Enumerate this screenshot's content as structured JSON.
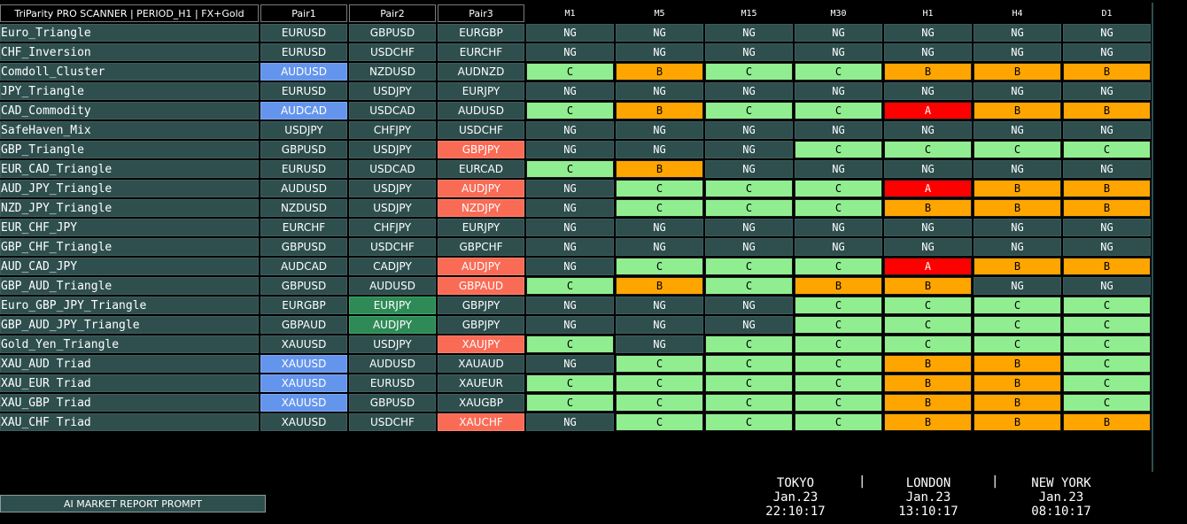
{
  "header": {
    "title": "TriParity PRO SCANNER | PERIOD_H1 | FX+Gold",
    "pair_headers": [
      "Pair1",
      "Pair2",
      "Pair3"
    ],
    "timeframes": [
      "M1",
      "M5",
      "M15",
      "M30",
      "H1",
      "H4",
      "D1"
    ]
  },
  "colors": {
    "NG": "#2f4f4f",
    "C": "#90ee90",
    "B": "#ffa500",
    "A": "#ff0000",
    "pair_blue": "#6495ed",
    "pair_red": "#fa6b55",
    "pair_green": "#2e8b57"
  },
  "rows": [
    {
      "name": "Euro_Triangle",
      "pairs": [
        [
          "EURUSD",
          ""
        ],
        [
          "GBPUSD",
          ""
        ],
        [
          "EURGBP",
          ""
        ]
      ],
      "signals": [
        "NG",
        "NG",
        "NG",
        "NG",
        "NG",
        "NG",
        "NG"
      ]
    },
    {
      "name": "CHF_Inversion",
      "pairs": [
        [
          "EURUSD",
          ""
        ],
        [
          "USDCHF",
          ""
        ],
        [
          "EURCHF",
          ""
        ]
      ],
      "signals": [
        "NG",
        "NG",
        "NG",
        "NG",
        "NG",
        "NG",
        "NG"
      ]
    },
    {
      "name": "Comdoll_Cluster",
      "pairs": [
        [
          "AUDUSD",
          "blue"
        ],
        [
          "NZDUSD",
          ""
        ],
        [
          "AUDNZD",
          ""
        ]
      ],
      "signals": [
        "C",
        "B",
        "C",
        "C",
        "B",
        "B",
        "B"
      ]
    },
    {
      "name": "JPY_Triangle",
      "pairs": [
        [
          "EURUSD",
          ""
        ],
        [
          "USDJPY",
          ""
        ],
        [
          "EURJPY",
          ""
        ]
      ],
      "signals": [
        "NG",
        "NG",
        "NG",
        "NG",
        "NG",
        "NG",
        "NG"
      ]
    },
    {
      "name": "CAD_Commodity",
      "pairs": [
        [
          "AUDCAD",
          "blue"
        ],
        [
          "USDCAD",
          ""
        ],
        [
          "AUDUSD",
          ""
        ]
      ],
      "signals": [
        "C",
        "B",
        "C",
        "C",
        "A",
        "B",
        "B"
      ]
    },
    {
      "name": "SafeHaven_Mix",
      "pairs": [
        [
          "USDJPY",
          ""
        ],
        [
          "CHFJPY",
          ""
        ],
        [
          "USDCHF",
          ""
        ]
      ],
      "signals": [
        "NG",
        "NG",
        "NG",
        "NG",
        "NG",
        "NG",
        "NG"
      ]
    },
    {
      "name": "GBP_Triangle",
      "pairs": [
        [
          "GBPUSD",
          ""
        ],
        [
          "USDJPY",
          ""
        ],
        [
          "GBPJPY",
          "red"
        ]
      ],
      "signals": [
        "NG",
        "NG",
        "NG",
        "C",
        "C",
        "C",
        "C"
      ]
    },
    {
      "name": "EUR_CAD_Triangle",
      "pairs": [
        [
          "EURUSD",
          ""
        ],
        [
          "USDCAD",
          ""
        ],
        [
          "EURCAD",
          ""
        ]
      ],
      "signals": [
        "C",
        "B",
        "NG",
        "NG",
        "NG",
        "NG",
        "NG"
      ]
    },
    {
      "name": "AUD_JPY_Triangle",
      "pairs": [
        [
          "AUDUSD",
          ""
        ],
        [
          "USDJPY",
          ""
        ],
        [
          "AUDJPY",
          "red"
        ]
      ],
      "signals": [
        "NG",
        "C",
        "C",
        "C",
        "A",
        "B",
        "B"
      ]
    },
    {
      "name": "NZD_JPY_Triangle",
      "pairs": [
        [
          "NZDUSD",
          ""
        ],
        [
          "USDJPY",
          ""
        ],
        [
          "NZDJPY",
          "red"
        ]
      ],
      "signals": [
        "NG",
        "C",
        "C",
        "C",
        "B",
        "B",
        "B"
      ]
    },
    {
      "name": "EUR_CHF_JPY",
      "pairs": [
        [
          "EURCHF",
          ""
        ],
        [
          "CHFJPY",
          ""
        ],
        [
          "EURJPY",
          ""
        ]
      ],
      "signals": [
        "NG",
        "NG",
        "NG",
        "NG",
        "NG",
        "NG",
        "NG"
      ]
    },
    {
      "name": "GBP_CHF_Triangle",
      "pairs": [
        [
          "GBPUSD",
          ""
        ],
        [
          "USDCHF",
          ""
        ],
        [
          "GBPCHF",
          ""
        ]
      ],
      "signals": [
        "NG",
        "NG",
        "NG",
        "NG",
        "NG",
        "NG",
        "NG"
      ]
    },
    {
      "name": "AUD_CAD_JPY",
      "pairs": [
        [
          "AUDCAD",
          ""
        ],
        [
          "CADJPY",
          ""
        ],
        [
          "AUDJPY",
          "red"
        ]
      ],
      "signals": [
        "NG",
        "C",
        "C",
        "C",
        "A",
        "B",
        "B"
      ]
    },
    {
      "name": "GBP_AUD_Triangle",
      "pairs": [
        [
          "GBPUSD",
          ""
        ],
        [
          "AUDUSD",
          ""
        ],
        [
          "GBPAUD",
          "red"
        ]
      ],
      "signals": [
        "C",
        "B",
        "C",
        "B",
        "B",
        "NG",
        "NG"
      ]
    },
    {
      "name": "Euro_GBP_JPY_Triangle",
      "pairs": [
        [
          "EURGBP",
          ""
        ],
        [
          "EURJPY",
          "green"
        ],
        [
          "GBPJPY",
          ""
        ]
      ],
      "signals": [
        "NG",
        "NG",
        "NG",
        "C",
        "C",
        "C",
        "C"
      ]
    },
    {
      "name": "GBP_AUD_JPY_Triangle",
      "pairs": [
        [
          "GBPAUD",
          ""
        ],
        [
          "AUDJPY",
          "green"
        ],
        [
          "GBPJPY",
          ""
        ]
      ],
      "signals": [
        "NG",
        "NG",
        "NG",
        "C",
        "C",
        "C",
        "C"
      ]
    },
    {
      "name": "Gold_Yen_Triangle",
      "pairs": [
        [
          "XAUUSD",
          ""
        ],
        [
          "USDJPY",
          ""
        ],
        [
          "XAUJPY",
          "red"
        ]
      ],
      "signals": [
        "C",
        "NG",
        "C",
        "C",
        "C",
        "C",
        "C"
      ]
    },
    {
      "name": "XAU_AUD Triad",
      "pairs": [
        [
          "XAUUSD",
          "blue"
        ],
        [
          "AUDUSD",
          ""
        ],
        [
          "XAUAUD",
          ""
        ]
      ],
      "signals": [
        "NG",
        "C",
        "C",
        "C",
        "B",
        "B",
        "C"
      ]
    },
    {
      "name": "XAU_EUR Triad",
      "pairs": [
        [
          "XAUUSD",
          "blue"
        ],
        [
          "EURUSD",
          ""
        ],
        [
          "XAUEUR",
          ""
        ]
      ],
      "signals": [
        "C",
        "C",
        "C",
        "C",
        "B",
        "B",
        "C"
      ]
    },
    {
      "name": "XAU_GBP Triad",
      "pairs": [
        [
          "XAUUSD",
          "blue"
        ],
        [
          "GBPUSD",
          ""
        ],
        [
          "XAUGBP",
          ""
        ]
      ],
      "signals": [
        "C",
        "C",
        "C",
        "C",
        "B",
        "B",
        "C"
      ]
    },
    {
      "name": "XAU_CHF Triad",
      "pairs": [
        [
          "XAUUSD",
          ""
        ],
        [
          "USDCHF",
          ""
        ],
        [
          "XAUCHF",
          "red"
        ]
      ],
      "signals": [
        "NG",
        "C",
        "C",
        "C",
        "B",
        "B",
        "B"
      ]
    }
  ],
  "footer": {
    "ai_button_label": "AI MARKET REPORT PROMPT",
    "separator": "|",
    "clocks": [
      {
        "city": "TOKYO",
        "date": "Jan.23",
        "time": "22:10:17"
      },
      {
        "city": "LONDON",
        "date": "Jan.23",
        "time": "13:10:17"
      },
      {
        "city": "NEW YORK",
        "date": "Jan.23",
        "time": "08:10:17"
      }
    ]
  }
}
